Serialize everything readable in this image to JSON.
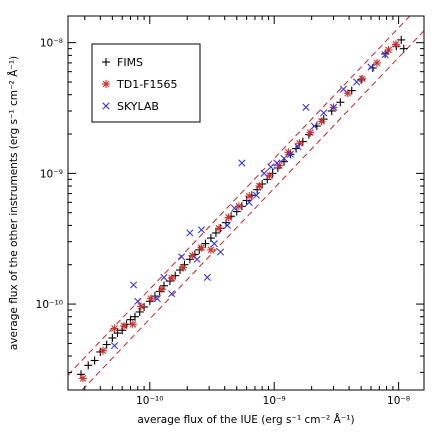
{
  "chart_data": {
    "type": "scatter",
    "xlabel": "average flux of the IUE (erg s⁻¹ cm⁻² Å⁻¹)",
    "ylabel": "average flux of the other instruments (erg s⁻¹ cm⁻² Å⁻¹)",
    "x_scale": "log",
    "y_scale": "log",
    "xlim": [
      2.2e-11,
      1.6e-08
    ],
    "ylim": [
      2.2e-11,
      1.6e-08
    ],
    "major_ticks": [
      1e-10,
      1e-09,
      1e-08
    ],
    "major_tick_labels": [
      "10⁻¹⁰",
      "10⁻⁹",
      "10⁻⁸"
    ],
    "grid": false,
    "legend_position": "top-left",
    "reference_lines": [
      {
        "name": "upper",
        "ratio": 1.3,
        "color": "#cc2222",
        "style": "dashed"
      },
      {
        "name": "lower",
        "ratio": 0.77,
        "color": "#cc2222",
        "style": "dashed"
      }
    ],
    "series": [
      {
        "name": "FIMS",
        "marker": "plus",
        "color": "#000000",
        "points": [
          [
            2.8e-11,
            2.9e-11
          ],
          [
            3.2e-11,
            3.4e-11
          ],
          [
            3.6e-11,
            3.7e-11
          ],
          [
            4e-11,
            4.3e-11
          ],
          [
            4.5e-11,
            4.9e-11
          ],
          [
            5e-11,
            5.5e-11
          ],
          [
            5.5e-11,
            6e-11
          ],
          [
            6e-11,
            6.3e-11
          ],
          [
            6.5e-11,
            7e-11
          ],
          [
            7e-11,
            7.6e-11
          ],
          [
            7.6e-11,
            8e-11
          ],
          [
            8.3e-11,
            8.7e-11
          ],
          [
            9e-11,
            9.5e-11
          ],
          [
            1e-10,
            1.05e-10
          ],
          [
            1.1e-10,
            1.15e-10
          ],
          [
            1.2e-10,
            1.25e-10
          ],
          [
            1.3e-10,
            1.38e-10
          ],
          [
            1.45e-10,
            1.5e-10
          ],
          [
            1.6e-10,
            1.65e-10
          ],
          [
            1.75e-10,
            1.82e-10
          ],
          [
            1.9e-10,
            2e-10
          ],
          [
            2.1e-10,
            2.2e-10
          ],
          [
            2.3e-10,
            2.4e-10
          ],
          [
            2.5e-10,
            2.6e-10
          ],
          [
            2.8e-10,
            2.9e-10
          ],
          [
            3.1e-10,
            3.2e-10
          ],
          [
            3.4e-10,
            3.5e-10
          ],
          [
            3.7e-10,
            3.8e-10
          ],
          [
            4.1e-10,
            4.2e-10
          ],
          [
            4.5e-10,
            4.7e-10
          ],
          [
            5e-10,
            5.1e-10
          ],
          [
            5.5e-10,
            5.6e-10
          ],
          [
            6e-10,
            6.2e-10
          ],
          [
            6.6e-10,
            6.8e-10
          ],
          [
            7.3e-10,
            7.5e-10
          ],
          [
            8e-10,
            8.3e-10
          ],
          [
            8.8e-10,
            9e-10
          ],
          [
            9.7e-10,
            1e-09
          ],
          [
            1.07e-09,
            1.1e-09
          ],
          [
            1.2e-09,
            1.23e-09
          ],
          [
            1.35e-09,
            1.4e-09
          ],
          [
            1.5e-09,
            1.55e-09
          ],
          [
            1.7e-09,
            1.75e-09
          ],
          [
            1.9e-09,
            1.98e-09
          ],
          [
            2.2e-09,
            2.3e-09
          ],
          [
            2.5e-09,
            2.6e-09
          ],
          [
            2.9e-09,
            3e-09
          ],
          [
            3.4e-09,
            3.5e-09
          ],
          [
            4.2e-09,
            4.3e-09
          ],
          [
            5e-09,
            5.2e-09
          ],
          [
            6.2e-09,
            6.4e-09
          ],
          [
            7.8e-09,
            8.2e-09
          ],
          [
            9.6e-09,
            9.4e-09
          ],
          [
            1.05e-08,
            1.05e-08
          ],
          [
            1.1e-08,
            9e-09
          ]
        ]
      },
      {
        "name": "TD1-F1565",
        "marker": "star",
        "color": "#d03030",
        "points": [
          [
            2.9e-11,
            2.7e-11
          ],
          [
            4.2e-11,
            4.4e-11
          ],
          [
            5.2e-11,
            6.5e-11
          ],
          [
            6.2e-11,
            6.8e-11
          ],
          [
            7.3e-11,
            7e-11
          ],
          [
            8.5e-11,
            9.6e-11
          ],
          [
            1.02e-10,
            1.1e-10
          ],
          [
            1.25e-10,
            1.3e-10
          ],
          [
            1.5e-10,
            1.58e-10
          ],
          [
            1.85e-10,
            1.9e-10
          ],
          [
            2.2e-10,
            2.35e-10
          ],
          [
            2.6e-10,
            2.7e-10
          ],
          [
            3.1e-10,
            2.6e-10
          ],
          [
            3.6e-10,
            3.8e-10
          ],
          [
            4.3e-10,
            4.6e-10
          ],
          [
            5.2e-10,
            5.6e-10
          ],
          [
            6.3e-10,
            6.7e-10
          ],
          [
            7.6e-10,
            8e-10
          ],
          [
            9.2e-10,
            9.6e-10
          ],
          [
            1.1e-09,
            1.15e-09
          ],
          [
            1.3e-09,
            1.45e-09
          ],
          [
            1.6e-09,
            1.7e-09
          ],
          [
            1.95e-09,
            2.05e-09
          ],
          [
            2.4e-09,
            2.5e-09
          ],
          [
            3e-09,
            3.2e-09
          ],
          [
            3.9e-09,
            4.1e-09
          ],
          [
            5.1e-09,
            5.3e-09
          ],
          [
            6.7e-09,
            7e-09
          ],
          [
            8.3e-09,
            8.8e-09
          ],
          [
            9.5e-09,
            9.7e-09
          ]
        ]
      },
      {
        "name": "SKYLAB",
        "marker": "cross",
        "color": "#3a3ae0",
        "points": [
          [
            5.2e-11,
            4.8e-11
          ],
          [
            7.4e-11,
            1.4e-10
          ],
          [
            8e-11,
            1.05e-10
          ],
          [
            1.15e-10,
            1.1e-10
          ],
          [
            1.3e-10,
            1.6e-10
          ],
          [
            1.5e-10,
            1.2e-10
          ],
          [
            1.8e-10,
            2.3e-10
          ],
          [
            2.1e-10,
            3.5e-10
          ],
          [
            2.4e-10,
            2.2e-10
          ],
          [
            2.6e-10,
            3.7e-10
          ],
          [
            2.9e-10,
            1.6e-10
          ],
          [
            3.3e-10,
            2.9e-10
          ],
          [
            3.7e-10,
            2.5e-10
          ],
          [
            4.2e-10,
            4e-10
          ],
          [
            4.8e-10,
            5.4e-10
          ],
          [
            5.5e-10,
            1.2e-09
          ],
          [
            6.3e-10,
            6e-10
          ],
          [
            7.2e-10,
            6.8e-10
          ],
          [
            8.3e-10,
            1e-09
          ],
          [
            9.4e-10,
            1.12e-09
          ],
          [
            1.05e-09,
            1.2e-09
          ],
          [
            1.2e-09,
            1.3e-09
          ],
          [
            1.35e-09,
            1.4e-09
          ],
          [
            1.55e-09,
            1.6e-09
          ],
          [
            1.8e-09,
            3.2e-09
          ],
          [
            2.1e-09,
            2.3e-09
          ],
          [
            2.5e-09,
            2.9e-09
          ],
          [
            3e-09,
            3.2e-09
          ],
          [
            3.6e-09,
            4.4e-09
          ],
          [
            4.6e-09,
            5e-09
          ],
          [
            6e-09,
            6.5e-09
          ],
          [
            7.8e-09,
            8.1e-09
          ]
        ]
      }
    ]
  }
}
